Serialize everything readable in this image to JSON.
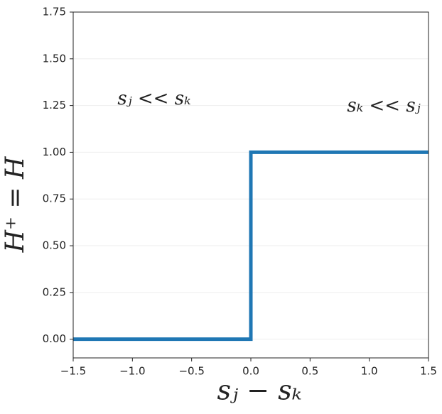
{
  "chart_data": {
    "type": "line",
    "x": [
      -1.5,
      0,
      0,
      1.5
    ],
    "values": [
      0,
      0,
      1,
      1
    ],
    "color": "#1f77b4",
    "xlim": [
      -1.5,
      1.5
    ],
    "xticks": [
      {
        "value": -1.5,
        "label": "−1.5"
      },
      {
        "value": -1.0,
        "label": "−1.0"
      },
      {
        "value": -0.5,
        "label": "−0.5"
      },
      {
        "value": 0,
        "label": "0.0"
      },
      0.5,
      {
        "value": 1.0,
        "label": "1.0"
      },
      1.5
    ],
    "ylim": [
      -0.1,
      1.75
    ],
    "yticks": [
      {
        "value": 0,
        "label": "0.00"
      },
      {
        "value": 0.25,
        "label": "0.25"
      },
      {
        "value": 0.5,
        "label": "0.50"
      },
      {
        "value": 0.75,
        "label": "0.75"
      },
      {
        "value": 1.0,
        "label": "1.00"
      },
      {
        "value": 1.25,
        "label": "1.25"
      },
      {
        "value": 1.5,
        "label": "1.50"
      },
      {
        "value": 1.75,
        "label": "1.75"
      }
    ],
    "grid": true,
    "xlabel": "sⱼ − sₖ",
    "ylabel": "H⁺ = H",
    "annotations": [
      "sⱼ << sₖ",
      "sₖ << sⱼ"
    ]
  }
}
